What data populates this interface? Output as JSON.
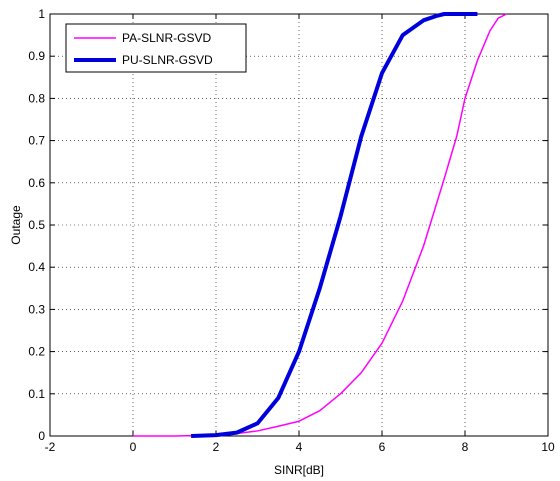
{
  "chart_data": {
    "type": "line",
    "title": "",
    "xlabel": "SINR[dB]",
    "ylabel": "Outage",
    "xlim": [
      -2,
      10
    ],
    "ylim": [
      0,
      1
    ],
    "xticks": [
      -2,
      0,
      2,
      4,
      6,
      8,
      10
    ],
    "yticks": [
      0,
      0.1,
      0.2,
      0.3,
      0.4,
      0.5,
      0.6,
      0.7,
      0.8,
      0.9,
      1
    ],
    "xtick_labels": [
      "-2",
      "0",
      "2",
      "4",
      "6",
      "8",
      "10"
    ],
    "ytick_labels": [
      "0",
      "0.1",
      "0.2",
      "0.3",
      "0.4",
      "0.5",
      "0.6",
      "0.7",
      "0.8",
      "0.9",
      "1"
    ],
    "grid": true,
    "legend_position": "top-left",
    "series": [
      {
        "name": "PA-SLNR-GSVD",
        "color": "#ff00ff",
        "style": "thin",
        "x": [
          0,
          1,
          2,
          2.5,
          3,
          3.5,
          4,
          4.5,
          5,
          5.5,
          6,
          6.5,
          7,
          7.5,
          7.8,
          8,
          8.3,
          8.6,
          8.8,
          9.0
        ],
        "y": [
          0,
          0,
          0.002,
          0.006,
          0.012,
          0.023,
          0.035,
          0.06,
          0.1,
          0.15,
          0.22,
          0.32,
          0.45,
          0.61,
          0.71,
          0.8,
          0.89,
          0.96,
          0.99,
          1.0
        ]
      },
      {
        "name": "PU-SLNR-GSVD",
        "color": "#0000dd",
        "style": "thick",
        "x": [
          1.4,
          2,
          2.5,
          3,
          3.5,
          4,
          4.5,
          5,
          5.5,
          6,
          6.5,
          7,
          7.3,
          7.5,
          8.0,
          8.3
        ],
        "y": [
          0,
          0.002,
          0.008,
          0.03,
          0.09,
          0.2,
          0.35,
          0.52,
          0.71,
          0.86,
          0.95,
          0.985,
          0.995,
          1.0,
          1.0,
          1.0
        ]
      }
    ]
  }
}
